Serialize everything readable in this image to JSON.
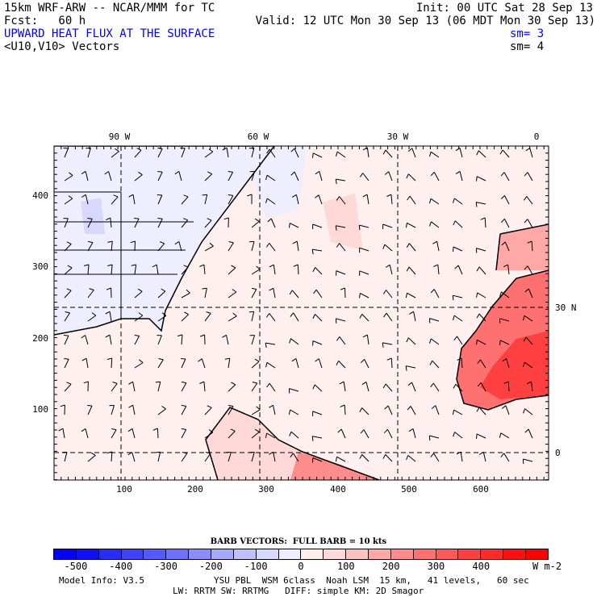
{
  "header": {
    "model": "15km WRF-ARW -- NCAR/MMM for TC",
    "init": "Init: 00 UTC Sat 28 Sep 13",
    "fcst": "Fcst:   60 h",
    "valid": "Valid: 12 UTC Mon 30 Sep 13 (06 MDT Mon 30 Sep 13)",
    "field": "UPWARD HEAT FLUX AT THE SURFACE",
    "field_sm": "sm= 3",
    "vectors": "<U10,V10> Vectors",
    "vectors_sm": "sm= 4"
  },
  "map": {
    "top_labels": [
      "90 W",
      "60 W",
      "30 W",
      "0"
    ],
    "right_labels": [
      "30 N",
      "0"
    ],
    "left_ticks": [
      "400",
      "300",
      "200",
      "100"
    ],
    "bottom_ticks": [
      "100",
      "200",
      "300",
      "400",
      "500",
      "600"
    ]
  },
  "legend": {
    "barb_title": "BARB VECTORS:  FULL BARB = 10 kts",
    "colors": [
      "#0000ff",
      "#1010ff",
      "#2a2aff",
      "#4040ff",
      "#5858ff",
      "#7070ff",
      "#8c8cff",
      "#a8a8ff",
      "#c0c0ff",
      "#d8d8ff",
      "#eeeeff",
      "#fff0f0",
      "#ffd8d8",
      "#ffc0c0",
      "#ffa8a8",
      "#ff8c8c",
      "#ff7070",
      "#ff5858",
      "#ff4040",
      "#ff2a2a",
      "#ff1010",
      "#ff0000"
    ],
    "labels": [
      "-500",
      "-400",
      "-300",
      "-200",
      "-100",
      "0",
      "100",
      "200",
      "300",
      "400"
    ],
    "units": "W m-2"
  },
  "footer": {
    "line1_left": "Model Info: V3.5",
    "line1_right": "YSU PBL  WSM 6class  Noah LSM  15 km,   41 levels,   60 sec",
    "line2": "LW: RRTM SW: RRTMG   DIFF: simple KM: 2D Smagor"
  }
}
